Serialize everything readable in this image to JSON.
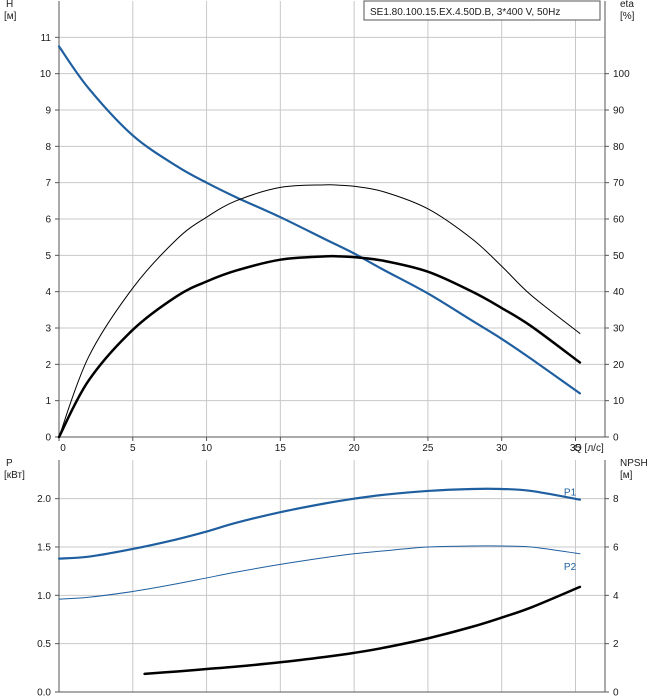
{
  "legend": {
    "text": "SE1.80.100.15.EX.4.50D.B, 3*400 V, 50Hz"
  },
  "colors": {
    "blue": "#1f5fa0",
    "black": "#000000",
    "grid": "#c8c8c8"
  },
  "chart_data": [
    {
      "type": "line",
      "title": "",
      "x_axis": {
        "label": "Q [л/с]",
        "range": [
          0,
          37
        ],
        "ticks": [
          0,
          5,
          10,
          15,
          20,
          25,
          30,
          35
        ]
      },
      "y_left": {
        "label_line1": "H",
        "label_line2": "[м]",
        "range": [
          0,
          12
        ],
        "ticks": [
          0,
          1,
          2,
          3,
          4,
          5,
          6,
          7,
          8,
          9,
          10,
          11
        ]
      },
      "y_right": {
        "label_line1": "eta",
        "label_line2": "[%]",
        "range": [
          0,
          120
        ],
        "ticks": [
          0,
          10,
          20,
          30,
          40,
          50,
          60,
          70,
          80,
          90,
          100
        ]
      },
      "grid": true,
      "series": [
        {
          "axis": "left",
          "color": "#1f5fa0",
          "width": 2.2,
          "x": [
            0,
            2,
            5,
            8,
            10,
            12,
            15,
            18,
            20,
            22,
            25,
            28,
            30,
            32,
            35.3
          ],
          "y": [
            10.75,
            9.6,
            8.3,
            7.45,
            7.0,
            6.6,
            6.05,
            5.45,
            5.05,
            4.6,
            3.95,
            3.2,
            2.7,
            2.15,
            1.2
          ]
        },
        {
          "axis": "right",
          "color": "#000000",
          "width": 1.0,
          "x": [
            0,
            2,
            5,
            8,
            10,
            12,
            15,
            18,
            19,
            20,
            22,
            25,
            28,
            30,
            32,
            35.3
          ],
          "y": [
            0,
            22,
            41,
            54.5,
            60.5,
            65,
            68.7,
            69.4,
            69.3,
            69,
            67.5,
            62.8,
            54.5,
            47,
            39,
            28.5
          ]
        },
        {
          "axis": "right",
          "color": "#000000",
          "width": 2.5,
          "x": [
            0,
            2,
            5,
            8,
            10,
            12,
            15,
            18,
            19,
            20,
            22,
            25,
            28,
            30,
            32,
            35.3
          ],
          "y": [
            0,
            15.5,
            29.5,
            38.8,
            42.8,
            45.8,
            48.8,
            49.7,
            49.7,
            49.5,
            48.5,
            45.5,
            40,
            35.5,
            30.5,
            20.5
          ]
        }
      ]
    },
    {
      "type": "line",
      "title": "",
      "x_axis": {
        "range": [
          0,
          37
        ]
      },
      "y_left": {
        "label_line1": "P",
        "label_line2": "[кВт]",
        "range": [
          0,
          2.4
        ],
        "ticks": [
          0.0,
          0.5,
          1.0,
          1.5,
          2.0
        ],
        "tick_labels": [
          "0.0",
          "0.5",
          "1.0",
          "1.5",
          "2.0"
        ]
      },
      "y_right": {
        "label_line1": "NPSH",
        "label_line2": "[м]",
        "range": [
          0,
          9.6
        ],
        "ticks": [
          0,
          2,
          4,
          6,
          8
        ]
      },
      "grid": true,
      "series": [
        {
          "name": "P1",
          "axis": "left",
          "color": "#1f5fa0",
          "width": 2.2,
          "x": [
            0,
            2,
            5,
            8,
            10,
            12,
            15,
            18,
            20,
            22,
            25,
            28,
            30,
            32,
            35.3
          ],
          "y": [
            1.38,
            1.4,
            1.48,
            1.58,
            1.66,
            1.75,
            1.86,
            1.95,
            2.0,
            2.04,
            2.08,
            2.1,
            2.1,
            2.08,
            1.99
          ]
        },
        {
          "name": "P2",
          "axis": "left",
          "color": "#1f5fa0",
          "width": 1.0,
          "x": [
            0,
            2,
            5,
            8,
            10,
            12,
            15,
            18,
            20,
            22,
            25,
            28,
            30,
            32,
            35.3
          ],
          "y": [
            0.96,
            0.98,
            1.04,
            1.12,
            1.18,
            1.24,
            1.32,
            1.39,
            1.43,
            1.46,
            1.5,
            1.51,
            1.51,
            1.5,
            1.43
          ]
        },
        {
          "axis": "right",
          "color": "#000000",
          "width": 2.5,
          "x": [
            5.8,
            8,
            10,
            12,
            15,
            18,
            20,
            22,
            25,
            28,
            30,
            32,
            35.3
          ],
          "y": [
            0.75,
            0.85,
            0.95,
            1.05,
            1.23,
            1.45,
            1.62,
            1.83,
            2.22,
            2.7,
            3.08,
            3.5,
            4.35
          ]
        }
      ]
    }
  ]
}
